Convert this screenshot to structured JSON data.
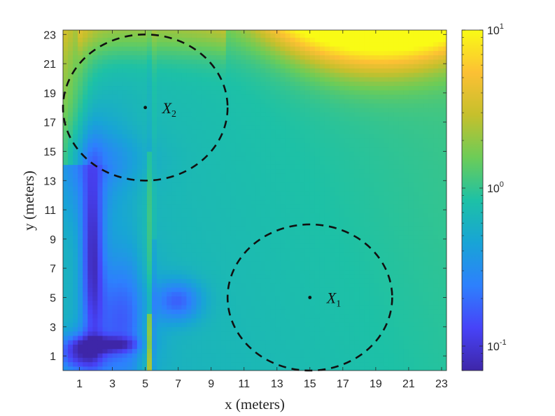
{
  "chart_data": {
    "type": "heatmap",
    "title": "",
    "xlabel": "x (meters)",
    "ylabel": "y (meters)",
    "xlim": [
      0,
      23.3
    ],
    "ylim": [
      0,
      23.3
    ],
    "xticks": [
      1,
      3,
      5,
      7,
      9,
      11,
      13,
      15,
      17,
      19,
      21,
      23
    ],
    "yticks": [
      1,
      3,
      5,
      7,
      9,
      11,
      13,
      15,
      17,
      19,
      21,
      23
    ],
    "colorbar": {
      "scale": "log",
      "range": [
        0.07,
        10
      ],
      "colormap": "parula",
      "ticks": [
        {
          "value": 0.1,
          "base": "10",
          "exp": "-1"
        },
        {
          "value": 1,
          "base": "10",
          "exp": "0"
        },
        {
          "value": 10,
          "base": "10",
          "exp": "1"
        }
      ]
    },
    "colormap_stops": [
      "#3e26a8",
      "#4743f8",
      "#2d80fd",
      "#18a4d6",
      "#1dc1a6",
      "#6ccc58",
      "#c5c02c",
      "#fcc034",
      "#f9fb15"
    ],
    "regions": [
      {
        "label": "X",
        "subscript": "1",
        "center": [
          15,
          5
        ],
        "radius": 5
      },
      {
        "label": "X",
        "subscript": "2",
        "center": [
          5,
          18
        ],
        "radius": 5
      }
    ]
  }
}
